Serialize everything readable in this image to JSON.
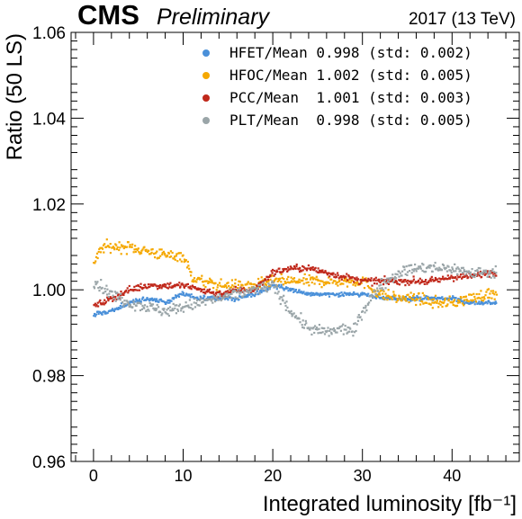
{
  "header": {
    "experiment": "CMS",
    "status": "Preliminary",
    "run_info": "2017 (13 TeV)"
  },
  "chart_data": {
    "type": "scatter",
    "xlabel": "Integrated luminosity [fb⁻¹]",
    "ylabel": "Ratio (50 LS)",
    "xlim": [
      -2.5,
      47.5
    ],
    "ylim": [
      0.96,
      1.06
    ],
    "xticks": [
      0,
      10,
      20,
      30,
      40
    ],
    "xtick_labels": [
      "0",
      "10",
      "20",
      "30",
      "40"
    ],
    "yticks": [
      0.96,
      0.98,
      1.0,
      1.02,
      1.04,
      1.06
    ],
    "ytick_labels": [
      "0.96",
      "0.98",
      "1.00",
      "1.02",
      "1.04",
      "1.06"
    ],
    "grid": false,
    "legend_position": "top-right",
    "series": [
      {
        "name": "HFET/Mean",
        "legend_label": "HFET/Mean 0.998 (std: 0.002)",
        "color": "#4a90d9",
        "mean": 0.998,
        "std": 0.002,
        "trend": [
          [
            0,
            0.994
          ],
          [
            2,
            0.995
          ],
          [
            4,
            0.997
          ],
          [
            6,
            0.998
          ],
          [
            8,
            0.997
          ],
          [
            10,
            0.999
          ],
          [
            12,
            0.998
          ],
          [
            14,
            0.998
          ],
          [
            16,
            0.998
          ],
          [
            18,
            0.999
          ],
          [
            20,
            1.001
          ],
          [
            22,
            1.0
          ],
          [
            24,
            0.999
          ],
          [
            26,
            0.999
          ],
          [
            28,
            0.999
          ],
          [
            30,
            0.999
          ],
          [
            32,
            0.998
          ],
          [
            34,
            0.998
          ],
          [
            36,
            0.998
          ],
          [
            38,
            0.998
          ],
          [
            40,
            0.998
          ],
          [
            42,
            0.997
          ],
          [
            44,
            0.997
          ],
          [
            45,
            0.997
          ]
        ]
      },
      {
        "name": "HFOC/Mean",
        "legend_label": "HFOC/Mean 1.002 (std: 0.005)",
        "color": "#f5a800",
        "mean": 1.002,
        "std": 0.005,
        "trend": [
          [
            0,
            1.006
          ],
          [
            1,
            1.01
          ],
          [
            2,
            1.01
          ],
          [
            4,
            1.01
          ],
          [
            6,
            1.009
          ],
          [
            8,
            1.008
          ],
          [
            10,
            1.008
          ],
          [
            11,
            1.003
          ],
          [
            12,
            1.002
          ],
          [
            14,
            1.001
          ],
          [
            16,
            1.001
          ],
          [
            18,
            1.001
          ],
          [
            20,
            1.002
          ],
          [
            22,
            1.002
          ],
          [
            24,
            1.002
          ],
          [
            26,
            1.002
          ],
          [
            28,
            1.002
          ],
          [
            30,
            1.002
          ],
          [
            32,
            0.999
          ],
          [
            34,
            0.998
          ],
          [
            36,
            0.998
          ],
          [
            38,
            0.997
          ],
          [
            40,
            0.997
          ],
          [
            42,
            0.998
          ],
          [
            44,
            0.999
          ],
          [
            45,
            0.999
          ]
        ]
      },
      {
        "name": "PCC/Mean",
        "legend_label": "PCC/Mean  1.001 (std: 0.003)",
        "color": "#c0281b",
        "mean": 1.001,
        "std": 0.003,
        "trend": [
          [
            0,
            0.996
          ],
          [
            2,
            0.998
          ],
          [
            4,
            1.0
          ],
          [
            6,
            1.001
          ],
          [
            8,
            1.001
          ],
          [
            10,
            1.001
          ],
          [
            12,
            1.0
          ],
          [
            14,
            0.999
          ],
          [
            16,
            1.0
          ],
          [
            18,
            1.0
          ],
          [
            20,
            1.004
          ],
          [
            22,
            1.005
          ],
          [
            24,
            1.005
          ],
          [
            26,
            1.004
          ],
          [
            28,
            1.003
          ],
          [
            30,
            1.002
          ],
          [
            32,
            1.002
          ],
          [
            34,
            1.002
          ],
          [
            36,
            1.002
          ],
          [
            38,
            1.002
          ],
          [
            40,
            1.003
          ],
          [
            42,
            1.003
          ],
          [
            44,
            1.004
          ],
          [
            45,
            1.004
          ]
        ]
      },
      {
        "name": "PLT/Mean",
        "legend_label": "PLT/Mean  0.998 (std: 0.005)",
        "color": "#9aa5a8",
        "mean": 0.998,
        "std": 0.005,
        "trend": [
          [
            0,
            1.002
          ],
          [
            2,
            0.999
          ],
          [
            4,
            0.997
          ],
          [
            6,
            0.996
          ],
          [
            8,
            0.995
          ],
          [
            10,
            0.996
          ],
          [
            12,
            0.997
          ],
          [
            14,
            0.998
          ],
          [
            16,
            0.999
          ],
          [
            18,
            1.0
          ],
          [
            20,
            1.001
          ],
          [
            22,
            0.995
          ],
          [
            24,
            0.991
          ],
          [
            26,
            0.99
          ],
          [
            28,
            0.991
          ],
          [
            29,
            0.99
          ],
          [
            30,
            0.995
          ],
          [
            32,
            1.001
          ],
          [
            34,
            1.004
          ],
          [
            36,
            1.005
          ],
          [
            38,
            1.005
          ],
          [
            40,
            1.005
          ],
          [
            42,
            1.004
          ],
          [
            44,
            1.004
          ],
          [
            45,
            1.004
          ]
        ]
      }
    ]
  }
}
